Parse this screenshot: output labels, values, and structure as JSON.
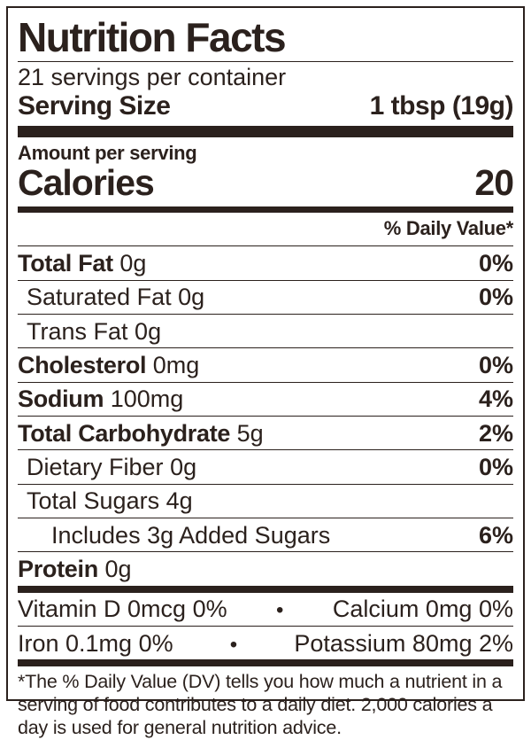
{
  "label": {
    "title": "Nutrition Facts",
    "servings_per_container": "21 servings per container",
    "serving_size_label": "Serving Size",
    "serving_size_value": "1 tbsp (19g)",
    "amount_per_serving": "Amount per serving",
    "calories_label": "Calories",
    "calories_value": "20",
    "daily_value_header": "% Daily Value*",
    "bullet": "•",
    "ink_color": "#2b211d",
    "rows": [
      {
        "name": "Total Fat",
        "amount": "0g",
        "dv": "0%"
      },
      {
        "name": "Saturated Fat",
        "amount": "0g",
        "dv": "0%"
      },
      {
        "name": "Trans Fat",
        "amount": "0g",
        "dv": ""
      },
      {
        "name": "Cholesterol",
        "amount": "0mg",
        "dv": "0%"
      },
      {
        "name": "Sodium",
        "amount": "100mg",
        "dv": "4%"
      },
      {
        "name": "Total Carbohydrate",
        "amount": "5g",
        "dv": "2%"
      },
      {
        "name": "Dietary Fiber",
        "amount": "0g",
        "dv": "0%"
      },
      {
        "name": "Total Sugars",
        "amount": "4g",
        "dv": ""
      },
      {
        "name": "Includes 3g Added Sugars",
        "amount": "",
        "dv": "6%"
      },
      {
        "name": "Protein",
        "amount": "0g",
        "dv": ""
      }
    ],
    "micronutrients": [
      {
        "left": "Vitamin D 0mcg 0%",
        "right": "Calcium 0mg 0%"
      },
      {
        "left": "Iron 0.1mg 0%",
        "right": "Potassium 80mg 2%"
      }
    ],
    "footnote": "*The % Daily Value (DV) tells you how much a nutrient in a serving of food contributes to a daily diet. 2,000 calories a day is used for general nutrition advice."
  }
}
